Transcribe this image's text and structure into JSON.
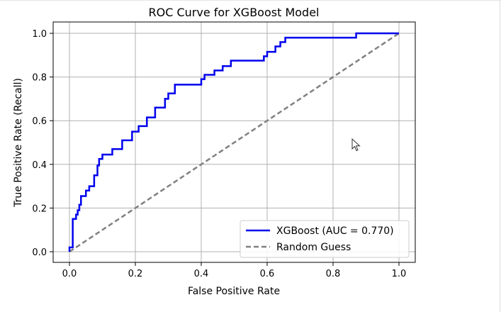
{
  "chart_data": {
    "type": "line",
    "title": "ROC Curve for XGBoost Model",
    "xlabel": "False Positive Rate",
    "ylabel": "True Positive Rate (Recall)",
    "xlim": [
      -0.05,
      1.05
    ],
    "ylim": [
      -0.05,
      1.05
    ],
    "xticks": [
      0.0,
      0.2,
      0.4,
      0.6,
      0.8,
      1.0
    ],
    "yticks": [
      0.0,
      0.2,
      0.4,
      0.6,
      0.8,
      1.0
    ],
    "xtick_labels": [
      "0.0",
      "0.2",
      "0.4",
      "0.6",
      "0.8",
      "1.0"
    ],
    "ytick_labels": [
      "0.0",
      "0.2",
      "0.4",
      "0.6",
      "0.8",
      "1.0"
    ],
    "grid": true,
    "legend_position": "lower-right",
    "series": [
      {
        "name": "XGBoost (AUC = 0.770)",
        "color": "#0000ee",
        "style": "solid",
        "x": [
          0.0,
          0.0,
          0.01,
          0.01,
          0.02,
          0.02,
          0.025,
          0.025,
          0.03,
          0.03,
          0.035,
          0.035,
          0.05,
          0.05,
          0.06,
          0.06,
          0.075,
          0.075,
          0.085,
          0.085,
          0.09,
          0.09,
          0.1,
          0.1,
          0.13,
          0.13,
          0.16,
          0.16,
          0.19,
          0.19,
          0.21,
          0.21,
          0.235,
          0.235,
          0.26,
          0.26,
          0.29,
          0.29,
          0.3,
          0.3,
          0.32,
          0.32,
          0.4,
          0.4,
          0.41,
          0.41,
          0.44,
          0.44,
          0.465,
          0.465,
          0.49,
          0.49,
          0.59,
          0.59,
          0.6,
          0.6,
          0.625,
          0.625,
          0.64,
          0.64,
          0.655,
          0.655,
          0.87,
          0.87,
          1.0
        ],
        "y": [
          0.0,
          0.02,
          0.02,
          0.15,
          0.15,
          0.17,
          0.17,
          0.19,
          0.19,
          0.215,
          0.215,
          0.255,
          0.255,
          0.28,
          0.28,
          0.3,
          0.3,
          0.35,
          0.35,
          0.395,
          0.395,
          0.425,
          0.425,
          0.445,
          0.445,
          0.47,
          0.47,
          0.51,
          0.51,
          0.55,
          0.55,
          0.575,
          0.575,
          0.615,
          0.615,
          0.66,
          0.66,
          0.7,
          0.7,
          0.725,
          0.725,
          0.765,
          0.765,
          0.79,
          0.79,
          0.81,
          0.81,
          0.83,
          0.83,
          0.85,
          0.85,
          0.875,
          0.875,
          0.895,
          0.895,
          0.915,
          0.915,
          0.94,
          0.94,
          0.96,
          0.96,
          0.98,
          0.98,
          1.0,
          1.0
        ]
      },
      {
        "name": "Random Guess",
        "color": "#808080",
        "style": "dashed",
        "x": [
          0.0,
          1.0
        ],
        "y": [
          0.0,
          1.0
        ]
      }
    ]
  }
}
